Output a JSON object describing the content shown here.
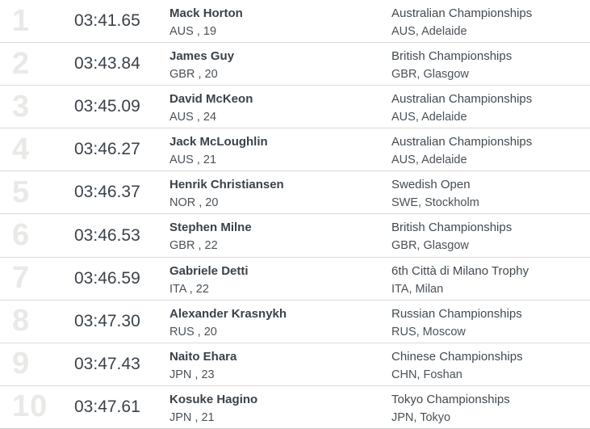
{
  "colors": {
    "background": "#ffffff",
    "rank_number": "#e9e9e7",
    "primary_text": "#3a424a",
    "secondary_text": "#4a5258",
    "divider": "#d9d9d9"
  },
  "table": {
    "rows": [
      {
        "rank": "1",
        "time": "03:41.65",
        "name": "Mack Horton",
        "detail": "AUS , 19",
        "meet": "Australian Championships",
        "location": "AUS, Adelaide"
      },
      {
        "rank": "2",
        "time": "03:43.84",
        "name": "James Guy",
        "detail": "GBR , 20",
        "meet": "British Championships",
        "location": "GBR, Glasgow"
      },
      {
        "rank": "3",
        "time": "03:45.09",
        "name": "David McKeon",
        "detail": "AUS , 24",
        "meet": "Australian Championships",
        "location": "AUS, Adelaide"
      },
      {
        "rank": "4",
        "time": "03:46.27",
        "name": "Jack McLoughlin",
        "detail": "AUS , 21",
        "meet": "Australian Championships",
        "location": "AUS, Adelaide"
      },
      {
        "rank": "5",
        "time": "03:46.37",
        "name": "Henrik Christiansen",
        "detail": "NOR , 20",
        "meet": "Swedish Open",
        "location": "SWE, Stockholm"
      },
      {
        "rank": "6",
        "time": "03:46.53",
        "name": "Stephen Milne",
        "detail": "GBR , 22",
        "meet": "British Championships",
        "location": "GBR, Glasgow"
      },
      {
        "rank": "7",
        "time": "03:46.59",
        "name": "Gabriele Detti",
        "detail": "ITA , 22",
        "meet": "6th Città di Milano Trophy",
        "location": "ITA, Milan"
      },
      {
        "rank": "8",
        "time": "03:47.30",
        "name": "Alexander Krasnykh",
        "detail": "RUS , 20",
        "meet": "Russian Championships",
        "location": "RUS, Moscow"
      },
      {
        "rank": "9",
        "time": "03:47.43",
        "name": "Naito Ehara",
        "detail": "JPN , 23",
        "meet": "Chinese Championships",
        "location": "CHN, Foshan"
      },
      {
        "rank": "10",
        "time": "03:47.61",
        "name": "Kosuke Hagino",
        "detail": "JPN , 21",
        "meet": "Tokyo Championships",
        "location": "JPN, Tokyo"
      }
    ]
  }
}
